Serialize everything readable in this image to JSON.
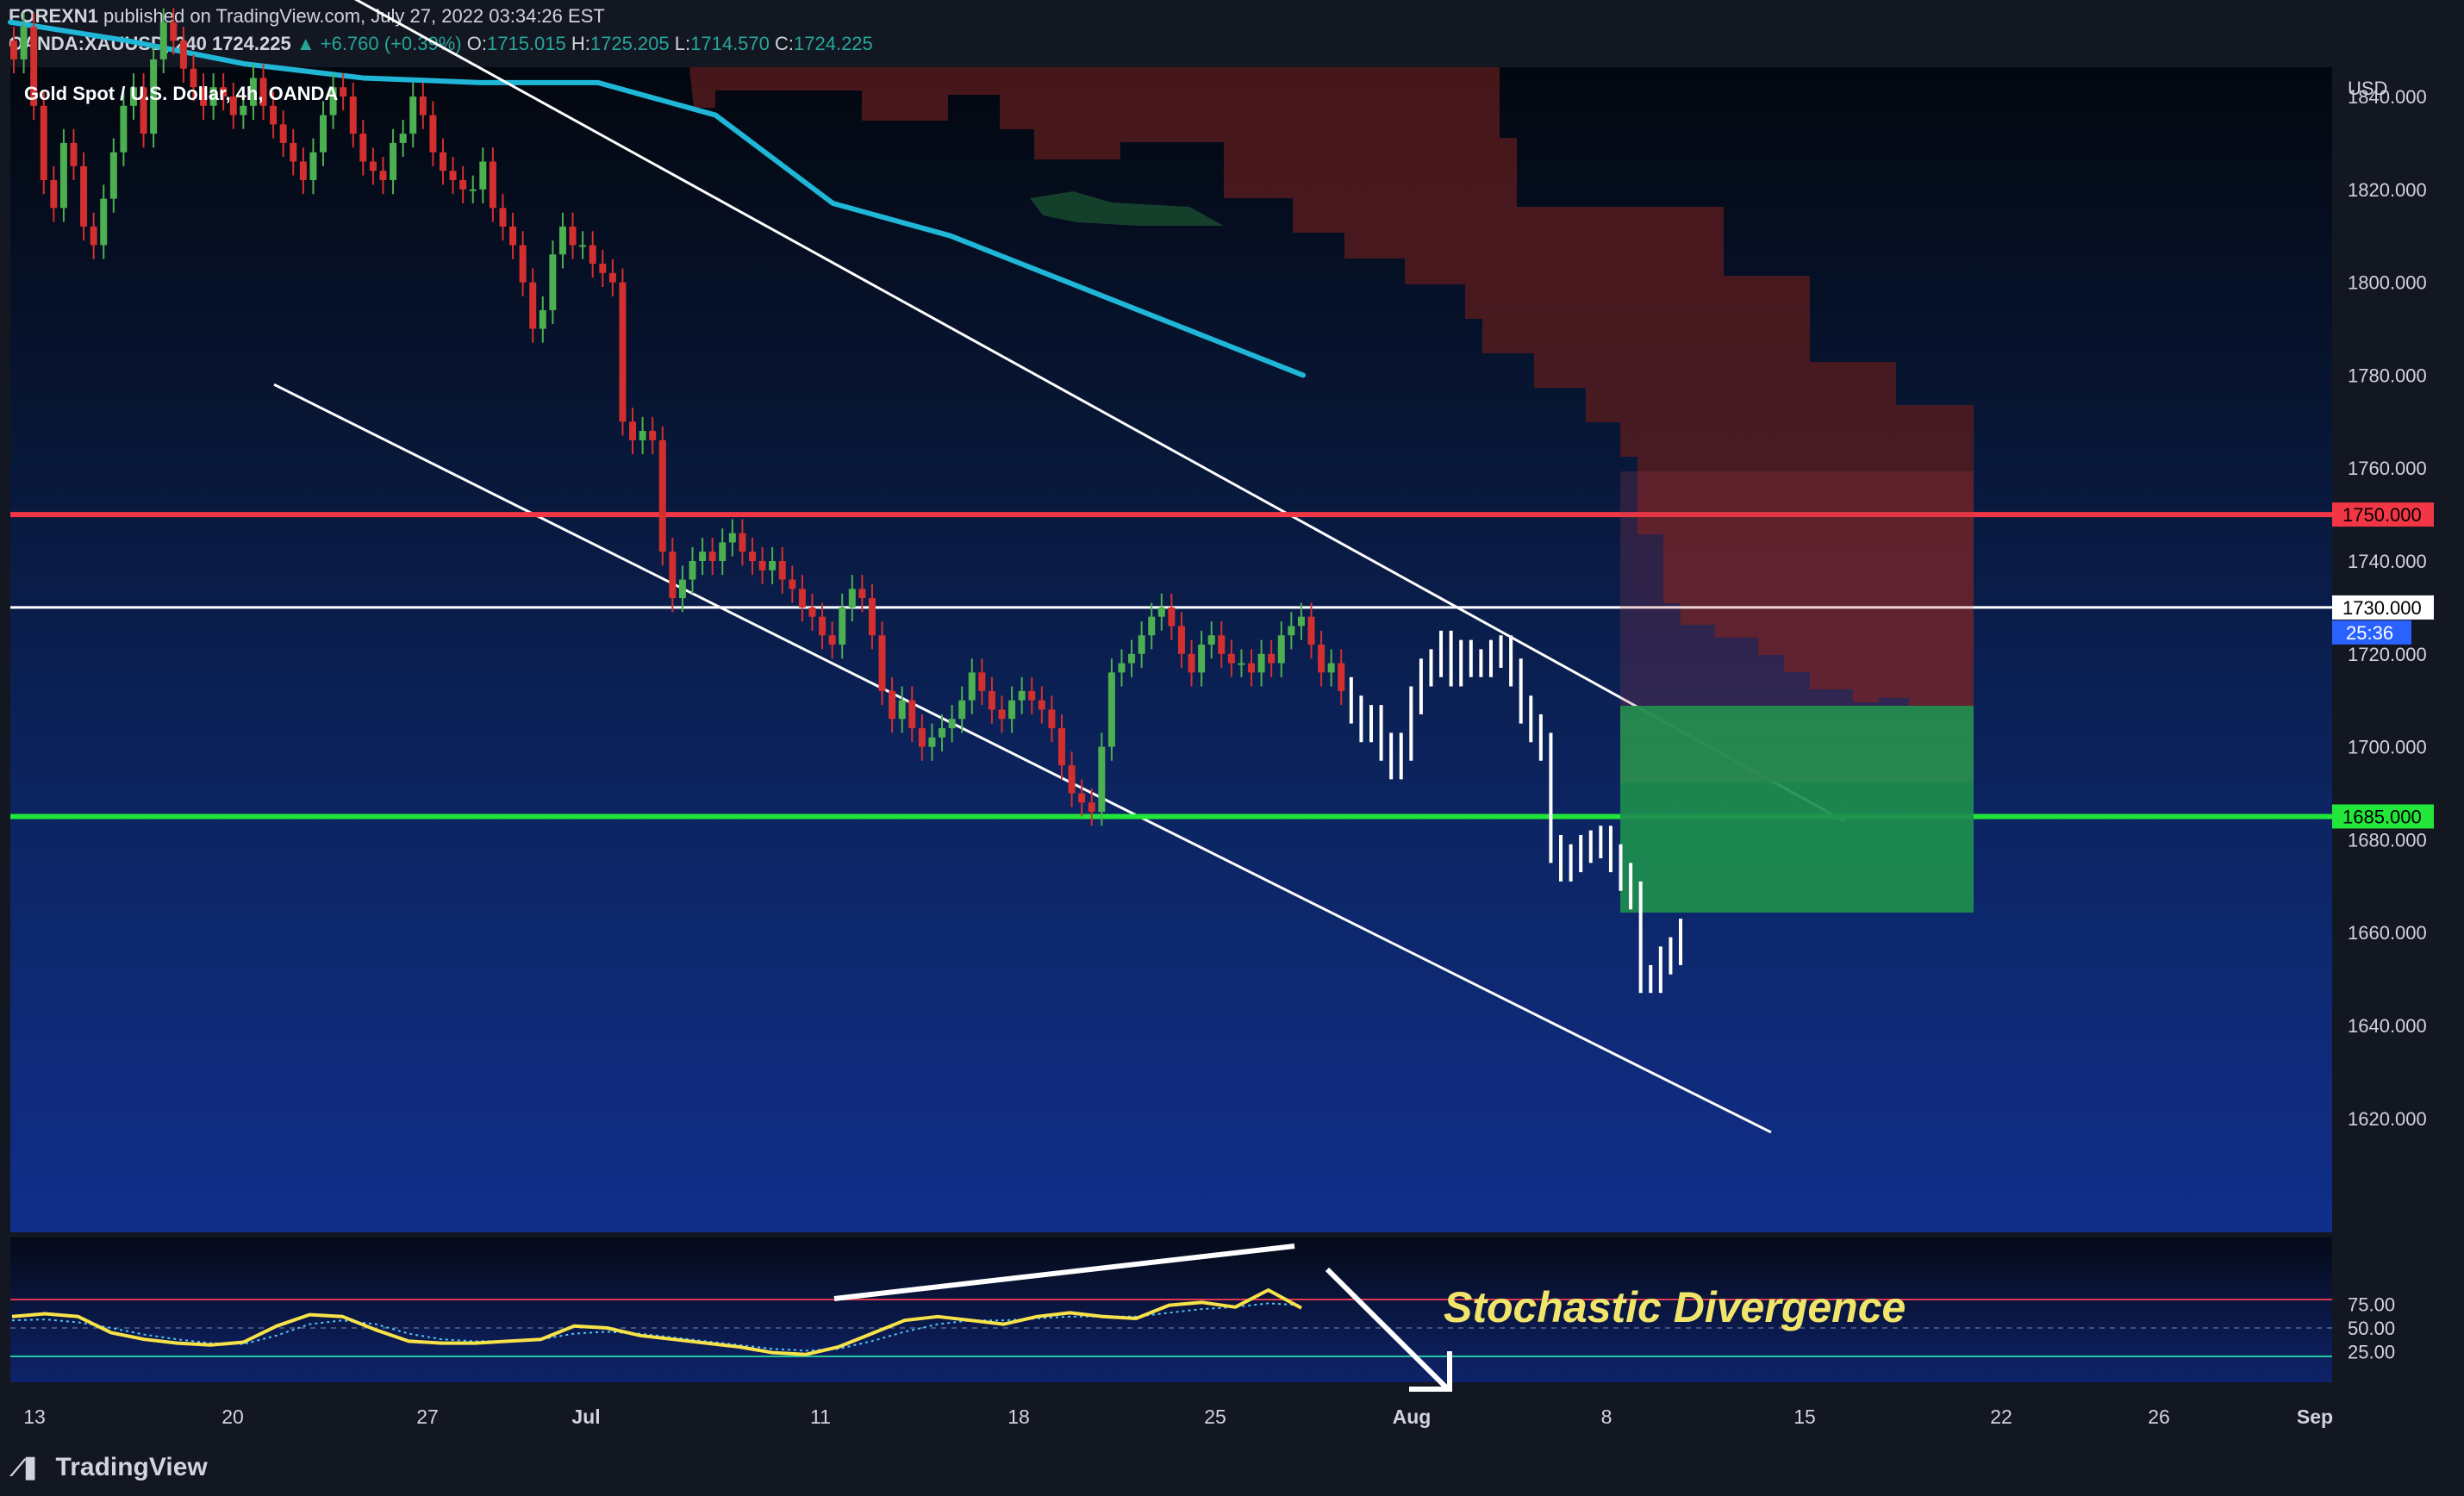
{
  "header": {
    "publisher": "FOREXN1",
    "published_text": "published on TradingView.com, July 27, 2022 03:34:26 EST",
    "symbol": "OANDA:XAUUSD, 240",
    "last": "1724.225",
    "change": "▲ +6.760 (+0.39%)",
    "o_label": "O:",
    "o": "1715.015",
    "h_label": "H:",
    "h": "1725.205",
    "l_label": "L:",
    "l": "1714.570",
    "c_label": "C:",
    "c": "1724.225"
  },
  "legend": "Gold Spot / U.S. Dollar, 4h, OANDA",
  "annotation": "Stochastic Divergence",
  "brand": "TradingView",
  "colors": {
    "resistance": "#f23645",
    "support": "#22e63a",
    "ma": "#1fb6d8",
    "stoch": "#f7e24a",
    "long_zone": "#1e8e4e",
    "short_zone": "#b23a4e"
  },
  "chart_data": {
    "type": "candlestick",
    "currency": "USD",
    "y_ticks": [
      "1840.000",
      "1820.000",
      "1800.000",
      "1780.000",
      "1760.000",
      "1740.000",
      "1720.000",
      "1700.000",
      "1680.000",
      "1660.000",
      "1640.000",
      "1620.000"
    ],
    "ylim": [
      1612,
      1864
    ],
    "x_ticks": [
      "13",
      "20",
      "27",
      "Jul",
      "11",
      "18",
      "25",
      "Aug",
      "8",
      "15",
      "22",
      "26",
      "Sep"
    ],
    "horizontal_levels": [
      {
        "value": 1750.0,
        "label": "1750.000",
        "color": "#f23645"
      },
      {
        "value": 1730.0,
        "label": "1730.000",
        "color": "#ffffff"
      },
      {
        "value": 1685.0,
        "label": "1685.000",
        "color": "#22e63a"
      }
    ],
    "countdown": "25:36",
    "series": [
      {
        "name": "Close",
        "values": [
          1848,
          1855,
          1838,
          1822,
          1816,
          1830,
          1825,
          1812,
          1808,
          1818,
          1828,
          1838,
          1842,
          1832,
          1848,
          1856,
          1852,
          1846,
          1842,
          1838,
          1842,
          1840,
          1836,
          1838,
          1844,
          1838,
          1834,
          1830,
          1826,
          1822,
          1828,
          1836,
          1842,
          1840,
          1832,
          1826,
          1824,
          1822,
          1830,
          1832,
          1840,
          1836,
          1828,
          1824,
          1822,
          1820,
          1820,
          1826,
          1816,
          1812,
          1808,
          1800,
          1790,
          1794,
          1806,
          1812,
          1808,
          1808,
          1804,
          1802,
          1800,
          1770,
          1766,
          1768,
          1766,
          1742,
          1732,
          1736,
          1740,
          1742,
          1740,
          1744,
          1746,
          1742,
          1740,
          1738,
          1740,
          1736,
          1734,
          1730,
          1728,
          1724,
          1722,
          1730,
          1734,
          1732,
          1724,
          1712,
          1706,
          1710,
          1704,
          1700,
          1702,
          1704,
          1706,
          1710,
          1716,
          1712,
          1708,
          1706,
          1710,
          1712,
          1710,
          1708,
          1704,
          1696,
          1690,
          1688,
          1686,
          1700,
          1716,
          1718,
          1720,
          1724,
          1728,
          1730,
          1726,
          1720,
          1716,
          1722,
          1724,
          1720,
          1718,
          1718,
          1716,
          1720,
          1718,
          1724,
          1726,
          1728,
          1722,
          1716,
          1718,
          1712,
          1708,
          1704,
          1706,
          1700,
          1696,
          1700,
          1710,
          1716,
          1718,
          1722,
          1716,
          1720,
          1718,
          1718,
          1720,
          1721,
          1716,
          1708,
          1704,
          1700,
          1678,
          1674,
          1676,
          1678,
          1679,
          1680,
          1676,
          1672,
          1668,
          1650,
          1650,
          1654,
          1656,
          1660
        ]
      },
      {
        "name": "MA",
        "values": [
          1856,
          1852,
          1847,
          1844,
          1843,
          1843,
          1836,
          1817,
          1810,
          1800,
          1790,
          1780
        ]
      },
      {
        "name": "%K",
        "values": [
          62,
          65,
          62,
          45,
          38,
          34,
          32,
          35,
          52,
          64,
          62,
          48,
          36,
          34,
          34,
          36,
          38,
          52,
          50,
          42,
          38,
          34,
          30,
          24,
          22,
          30,
          44,
          58,
          62,
          58,
          54,
          62,
          66,
          62,
          60,
          74,
          77,
          72,
          90,
          71
        ]
      },
      {
        "name": "%D",
        "values": [
          58,
          59,
          56,
          50,
          43,
          38,
          34,
          33,
          42,
          54,
          58,
          54,
          44,
          38,
          36,
          36,
          38,
          44,
          46,
          44,
          40,
          36,
          32,
          28,
          26,
          28,
          36,
          46,
          54,
          58,
          58,
          60,
          62,
          62,
          62,
          66,
          70,
          72,
          76,
          74
        ]
      }
    ],
    "stochastic_ticks": [
      "75.00",
      "50.00",
      "25.00"
    ],
    "stoch_levels": [
      80,
      20
    ]
  }
}
